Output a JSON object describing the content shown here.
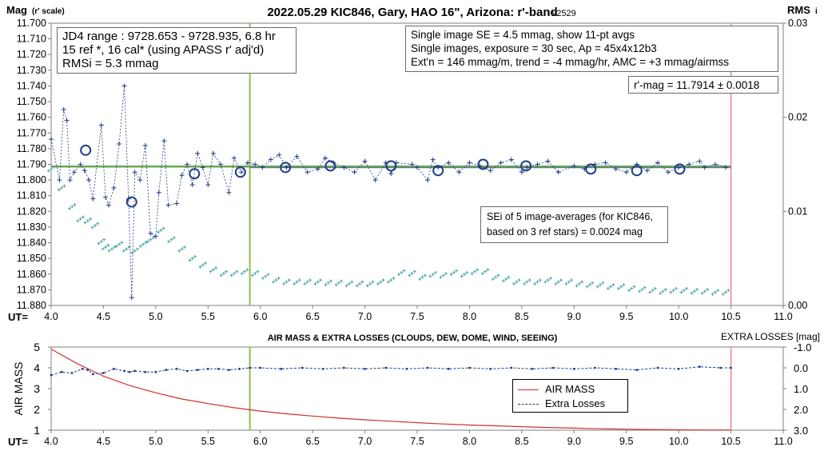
{
  "chart_data": [
    {
      "type": "scatter",
      "title": "2022.05.29 KIC846, Gary, HAO 16\", Arizona: r'-band",
      "version": "- v2529",
      "ylabel": "Mag",
      "ylabel_note": "(r' scale)",
      "y2label": "RMS",
      "y2label_note": "i",
      "xlabel": "UT=",
      "xlim": [
        4.0,
        11.0
      ],
      "ylim": [
        11.88,
        11.7
      ],
      "y2lim": [
        0.0,
        0.03
      ],
      "x_ticks": [
        "4.0",
        "4.5",
        "5.0",
        "5.5",
        "6.0",
        "6.5",
        "7.0",
        "7.5",
        "8.0",
        "8.5",
        "9.0",
        "9.5",
        "10.0",
        "10.5",
        "11.0"
      ],
      "y_ticks": [
        "11.700",
        "11.710",
        "11.720",
        "11.730",
        "11.740",
        "11.750",
        "11.760",
        "11.770",
        "11.780",
        "11.790",
        "11.800",
        "11.810",
        "11.820",
        "11.830",
        "11.840",
        "11.850",
        "11.860",
        "11.870",
        "11.880"
      ],
      "y2_ticks": [
        "0.03",
        "0.02",
        "0.01",
        "0.00"
      ],
      "info_left": [
        "JD4 range : 9728.653 - 9728.935,  6.8  hr",
        "15 ref *, 16 cal* (using APASS r' adj'd)",
        "RMSi = 5.3 mmag"
      ],
      "info_right": [
        "Single image SE = 4.5 mmag, show  11-pt avgs",
        "Single images, exposure = 30 sec, Ap = 45x4x12b3",
        "Ext'n = 146 mmag/m, trend = -4  mmag/hr, AMC = +3 mmag/airmss"
      ],
      "result": "r'-mag = 11.7914 ± 0.0018",
      "sei_note": [
        "SEi of 5 image-averages (for KIC846,",
        "based on 3 ref stars) = 0.0024 mag"
      ],
      "mean_mag": 11.7914,
      "green_line_ut": 5.9,
      "pink_line_ut": 10.5,
      "colors": {
        "points": "#1f3c88",
        "rms": "#4aa3a3",
        "fit": "#6aa84f",
        "green": "#8bc34a",
        "pink": "#e8a0a6"
      },
      "averages": {
        "x": [
          4.33,
          4.77,
          5.37,
          5.81,
          6.24,
          6.67,
          7.25,
          7.7,
          8.13,
          8.54,
          9.16,
          9.6,
          10.01
        ],
        "y": [
          11.781,
          11.814,
          11.796,
          11.795,
          11.792,
          11.791,
          11.791,
          11.794,
          11.79,
          11.791,
          11.793,
          11.794,
          11.793
        ]
      },
      "single_images": {
        "x": [
          4.0,
          4.08,
          4.12,
          4.15,
          4.18,
          4.22,
          4.28,
          4.32,
          4.36,
          4.4,
          4.48,
          4.52,
          4.55,
          4.6,
          4.65,
          4.7,
          4.74,
          4.77,
          4.8,
          4.85,
          4.9,
          4.95,
          5.0,
          5.03,
          5.08,
          5.12,
          5.2,
          5.25,
          5.3,
          5.35,
          5.4,
          5.45,
          5.5,
          5.55,
          5.62,
          5.7,
          5.75,
          5.82,
          5.88,
          5.95,
          6.02,
          6.1,
          6.18,
          6.25,
          6.35,
          6.45,
          6.55,
          6.62,
          6.7,
          6.8,
          6.9,
          7.0,
          7.1,
          7.2,
          7.25,
          7.3,
          7.45,
          7.5,
          7.6,
          7.65,
          7.7,
          7.8,
          7.9,
          8.0,
          8.1,
          8.2,
          8.3,
          8.4,
          8.5,
          8.55,
          8.65,
          8.75,
          8.85,
          9.0,
          9.1,
          9.2,
          9.3,
          9.4,
          9.5,
          9.6,
          9.7,
          9.8,
          9.9,
          10.0,
          10.1,
          10.2,
          10.25,
          10.35,
          10.45
        ],
        "y": [
          11.774,
          11.8,
          11.755,
          11.762,
          11.8,
          11.795,
          11.79,
          11.794,
          11.8,
          11.812,
          11.765,
          11.811,
          11.816,
          11.805,
          11.777,
          11.74,
          11.812,
          11.875,
          11.795,
          11.8,
          11.778,
          11.834,
          11.836,
          11.808,
          11.775,
          11.816,
          11.815,
          11.797,
          11.79,
          11.803,
          11.783,
          11.792,
          11.803,
          11.783,
          11.79,
          11.808,
          11.786,
          11.795,
          11.789,
          11.79,
          11.792,
          11.787,
          11.784,
          11.792,
          11.785,
          11.795,
          11.793,
          11.786,
          11.789,
          11.792,
          11.795,
          11.788,
          11.8,
          11.789,
          11.796,
          11.789,
          11.79,
          11.792,
          11.8,
          11.787,
          11.792,
          11.789,
          11.795,
          11.789,
          11.791,
          11.794,
          11.789,
          11.787,
          11.795,
          11.792,
          11.79,
          11.788,
          11.795,
          11.791,
          11.793,
          11.79,
          11.789,
          11.793,
          11.795,
          11.79,
          11.794,
          11.789,
          11.795,
          11.792,
          11.79,
          11.788,
          11.792,
          11.79,
          11.792
        ]
      },
      "rms_series": {
        "x": [
          4.0,
          4.1,
          4.2,
          4.28,
          4.35,
          4.42,
          4.48,
          4.52,
          4.58,
          4.65,
          4.72,
          4.8,
          4.88,
          4.95,
          5.05,
          5.15,
          5.25,
          5.35,
          5.45,
          5.55,
          5.65,
          5.75,
          5.85,
          5.95,
          6.05,
          6.15,
          6.25,
          6.35,
          6.45,
          6.55,
          6.65,
          6.75,
          6.85,
          6.95,
          7.05,
          7.15,
          7.25,
          7.35,
          7.45,
          7.55,
          7.65,
          7.75,
          7.85,
          7.95,
          8.05,
          8.15,
          8.25,
          8.35,
          8.45,
          8.55,
          8.65,
          8.75,
          8.85,
          8.95,
          9.05,
          9.15,
          9.25,
          9.35,
          9.45,
          9.55,
          9.65,
          9.75,
          9.85,
          9.95,
          10.05,
          10.15,
          10.25,
          10.35,
          10.45
        ],
        "y": [
          0.0145,
          0.0125,
          0.0105,
          0.0092,
          0.009,
          0.0085,
          0.0068,
          0.0062,
          0.006,
          0.0065,
          0.006,
          0.0058,
          0.0065,
          0.007,
          0.008,
          0.007,
          0.006,
          0.005,
          0.0043,
          0.0038,
          0.0034,
          0.0034,
          0.0036,
          0.0034,
          0.0031,
          0.0027,
          0.0025,
          0.0025,
          0.0025,
          0.0025,
          0.0024,
          0.0024,
          0.0023,
          0.0023,
          0.0023,
          0.0025,
          0.0027,
          0.0035,
          0.0034,
          0.003,
          0.0033,
          0.0032,
          0.0035,
          0.0033,
          0.0036,
          0.0036,
          0.003,
          0.0028,
          0.0025,
          0.0025,
          0.0025,
          0.0027,
          0.0025,
          0.0025,
          0.0023,
          0.0022,
          0.0022,
          0.002,
          0.002,
          0.0018,
          0.0017,
          0.0016,
          0.0015,
          0.0016,
          0.0016,
          0.0015,
          0.0015,
          0.0014,
          0.0014
        ]
      }
    },
    {
      "type": "line",
      "title": "AIR MASS & EXTRA LOSSES (CLOUDS, DEW, DOME, WIND, SEEING)",
      "ylabel": "AIR MASS",
      "y2label": "EXTRA LOSSES [mag]",
      "xlabel": "UT=",
      "xlim": [
        4.0,
        11.0
      ],
      "ylim": [
        1,
        5
      ],
      "y2lim": [
        -1.0,
        3.0
      ],
      "x_ticks": [
        "4.0",
        "4.5",
        "5.0",
        "5.5",
        "6.0",
        "6.5",
        "7.0",
        "7.5",
        "8.0",
        "8.5",
        "9.0",
        "9.5",
        "10.0",
        "10.5",
        "11.0"
      ],
      "y_ticks": [
        "5",
        "4",
        "3",
        "2",
        "1"
      ],
      "y2_ticks": [
        "-1.0",
        "0.0",
        "1.0",
        "2.0",
        "3.0"
      ],
      "legend": [
        "AIR MASS",
        "Extra Losses"
      ],
      "green_line_ut": 5.9,
      "pink_line_ut": 10.5,
      "colors": {
        "airmass": "#d32f2f",
        "losses": "#1f3c88"
      },
      "series": [
        {
          "name": "AIR MASS",
          "x": [
            4.0,
            4.25,
            4.5,
            4.75,
            5.0,
            5.25,
            5.5,
            5.75,
            6.0,
            6.25,
            6.5,
            6.75,
            7.0,
            7.25,
            7.5,
            7.75,
            8.0,
            8.25,
            8.5,
            8.75,
            9.0,
            9.25,
            9.5,
            9.75,
            10.0,
            10.25,
            10.5
          ],
          "values": [
            4.9,
            4.2,
            3.6,
            3.15,
            2.8,
            2.5,
            2.28,
            2.08,
            1.92,
            1.79,
            1.68,
            1.58,
            1.5,
            1.43,
            1.36,
            1.3,
            1.25,
            1.21,
            1.17,
            1.13,
            1.1,
            1.07,
            1.05,
            1.03,
            1.02,
            1.01,
            1.01
          ]
        },
        {
          "name": "Extra Losses",
          "x": [
            4.0,
            4.1,
            4.2,
            4.3,
            4.35,
            4.4,
            4.5,
            4.6,
            4.7,
            4.75,
            4.8,
            4.9,
            5.0,
            5.1,
            5.2,
            5.3,
            5.4,
            5.5,
            5.6,
            5.7,
            5.8,
            5.9,
            6.0,
            6.2,
            6.4,
            6.6,
            6.8,
            7.0,
            7.2,
            7.4,
            7.6,
            7.8,
            8.0,
            8.2,
            8.4,
            8.6,
            8.8,
            9.0,
            9.2,
            9.4,
            9.6,
            9.8,
            10.0,
            10.2,
            10.4,
            10.5
          ],
          "values": [
            0.35,
            0.2,
            0.25,
            0.05,
            0.1,
            0.3,
            0.25,
            0.05,
            0.15,
            0.2,
            0.15,
            0.2,
            0.2,
            0.1,
            0.05,
            0.15,
            0.1,
            0.05,
            0.05,
            0.1,
            0.05,
            0.0,
            0.0,
            0.05,
            0.0,
            0.05,
            0.0,
            0.05,
            0.0,
            0.05,
            0.0,
            0.05,
            0.0,
            0.05,
            0.0,
            0.05,
            0.0,
            0.05,
            0.0,
            0.05,
            0.1,
            0.0,
            0.05,
            -0.05,
            0.0,
            0.0
          ]
        }
      ]
    }
  ]
}
